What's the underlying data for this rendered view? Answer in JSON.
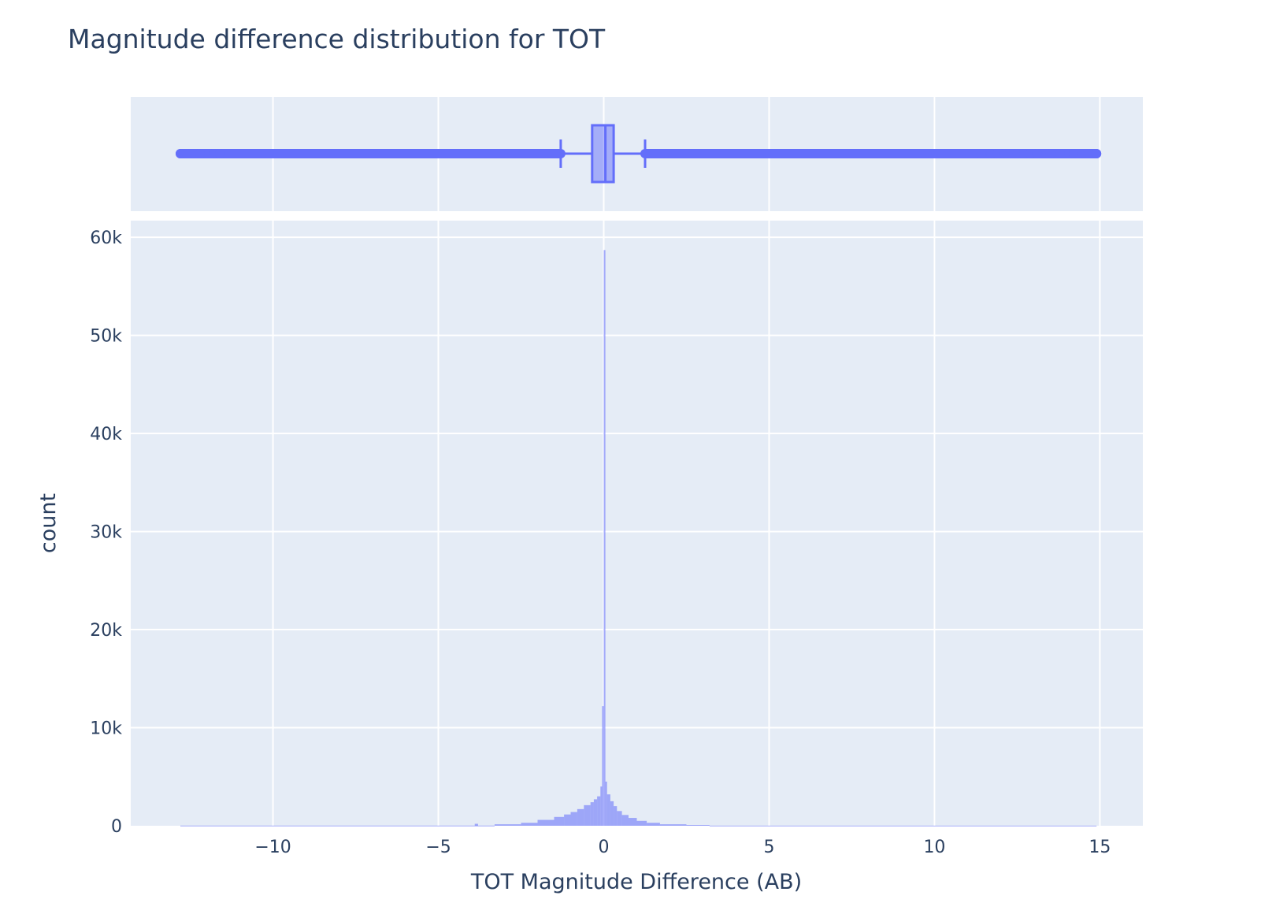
{
  "chart_data": {
    "type": "histogram",
    "title": "Magnitude difference distribution for TOT",
    "xlabel": "TOT Magnitude Difference (AB)",
    "ylabel": "count",
    "xlim": [
      -14.3,
      16.3
    ],
    "ylim": [
      0,
      61700
    ],
    "grid": true,
    "x_ticks": [
      {
        "value": -10,
        "label": "−10"
      },
      {
        "value": -5,
        "label": "−5"
      },
      {
        "value": 0,
        "label": "0"
      },
      {
        "value": 5,
        "label": "5"
      },
      {
        "value": 10,
        "label": "10"
      },
      {
        "value": 15,
        "label": "15"
      }
    ],
    "y_ticks": [
      {
        "value": 0,
        "label": "0"
      },
      {
        "value": 10000,
        "label": "10k"
      },
      {
        "value": 20000,
        "label": "20k"
      },
      {
        "value": 30000,
        "label": "30k"
      },
      {
        "value": 40000,
        "label": "40k"
      },
      {
        "value": 50000,
        "label": "50k"
      },
      {
        "value": 60000,
        "label": "60k"
      }
    ],
    "bin_width": 0.05,
    "histogram": [
      {
        "x_start": -3.3,
        "x_end": -2.5,
        "count": 150
      },
      {
        "x_start": -2.5,
        "x_end": -2.0,
        "count": 300
      },
      {
        "x_start": -2.0,
        "x_end": -1.5,
        "count": 600
      },
      {
        "x_start": -1.5,
        "x_end": -1.2,
        "count": 900
      },
      {
        "x_start": -1.2,
        "x_end": -1.0,
        "count": 1150
      },
      {
        "x_start": -1.0,
        "x_end": -0.8,
        "count": 1400
      },
      {
        "x_start": -0.8,
        "x_end": -0.6,
        "count": 1700
      },
      {
        "x_start": -0.6,
        "x_end": -0.4,
        "count": 2100
      },
      {
        "x_start": -0.4,
        "x_end": -0.3,
        "count": 2400
      },
      {
        "x_start": -0.3,
        "x_end": -0.2,
        "count": 2700
      },
      {
        "x_start": -0.2,
        "x_end": -0.1,
        "count": 3000
      },
      {
        "x_start": -0.1,
        "x_end": -0.05,
        "count": 4000
      },
      {
        "x_start": -0.05,
        "x_end": 0.0,
        "count": 12200
      },
      {
        "x_start": 0.0,
        "x_end": 0.05,
        "count": 58700
      },
      {
        "x_start": 0.05,
        "x_end": 0.1,
        "count": 4500
      },
      {
        "x_start": 0.1,
        "x_end": 0.2,
        "count": 3200
      },
      {
        "x_start": 0.2,
        "x_end": 0.3,
        "count": 2500
      },
      {
        "x_start": 0.3,
        "x_end": 0.4,
        "count": 2000
      },
      {
        "x_start": 0.4,
        "x_end": 0.55,
        "count": 1500
      },
      {
        "x_start": 0.55,
        "x_end": 0.75,
        "count": 1100
      },
      {
        "x_start": 0.75,
        "x_end": 1.0,
        "count": 800
      },
      {
        "x_start": 1.0,
        "x_end": 1.3,
        "count": 500
      },
      {
        "x_start": 1.3,
        "x_end": 1.7,
        "count": 300
      },
      {
        "x_start": 1.7,
        "x_end": 2.5,
        "count": 150
      },
      {
        "x_start": 2.5,
        "x_end": 3.2,
        "count": 80
      },
      {
        "x_start": -12.8,
        "x_end": -3.3,
        "count": 15
      },
      {
        "x_start": -3.9,
        "x_end": -3.8,
        "count": 200
      },
      {
        "x_start": 3.2,
        "x_end": 14.9,
        "count": 12
      }
    ],
    "box": {
      "orientation": "horizontal",
      "q1": -0.35,
      "median": 0.05,
      "q3": 0.3,
      "lower_fence": -1.3,
      "upper_fence": 1.25,
      "outliers_left_range": [
        -12.8,
        -1.3
      ],
      "outliers_right_range": [
        1.25,
        14.9
      ],
      "outlier_points": [
        -12.8,
        -12.6,
        -12.35,
        -12.2,
        -11.8,
        -11.6,
        11.4,
        11.7,
        11.9,
        12.1,
        12.3,
        12.5,
        12.7,
        12.9,
        13.1,
        13.5,
        13.8,
        14.2,
        14.9
      ]
    },
    "colors": {
      "trace": "#636efa",
      "plot_background": "#e5ecf6",
      "grid": "#ffffff",
      "text": "#2a3f5f"
    }
  }
}
